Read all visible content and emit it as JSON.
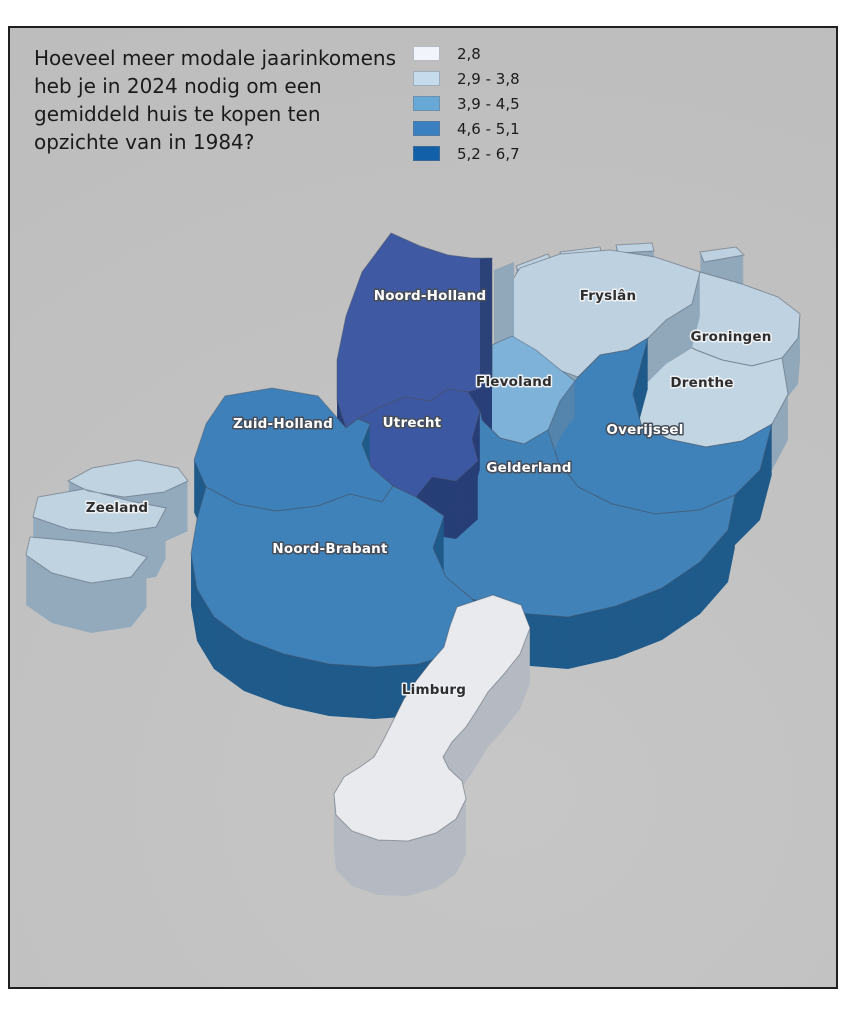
{
  "title": {
    "text": "Hoeveel meer modale jaarinkomens\nheb je in 2024 nodig om een\ngemiddeld huis te kopen ten\nopzichte van in 1984?"
  },
  "legend": {
    "items": [
      {
        "label": "2,8",
        "color": "#f1f4fa"
      },
      {
        "label": "2,9 - 3,8",
        "color": "#c6dbec"
      },
      {
        "label": "3,9 - 4,5",
        "color": "#67a8d6"
      },
      {
        "label": "4,6 - 5,1",
        "color": "#3a7fc0"
      },
      {
        "label": "5,2 - 6,7",
        "color": "#1160a8"
      }
    ]
  },
  "map": {
    "background_color": "#c1c1c1",
    "frame_border_color": "#1f1f1f",
    "provinces": [
      {
        "id": "groningen",
        "name": "Groningen",
        "value": "2,9 - 3,8",
        "top_color": "#bed2e1",
        "side_color": "#90a8ba",
        "label_style": "dark"
      },
      {
        "id": "drenthe",
        "name": "Drenthe",
        "value": "2,9 - 3,8",
        "top_color": "#c2d5e3",
        "side_color": "#90a8ba",
        "label_style": "dark"
      },
      {
        "id": "fryslan",
        "name": "Fryslân",
        "value": "2,9 - 3,8",
        "top_color": "#bdd1e0",
        "side_color": "#90a8ba",
        "label_style": "dark"
      },
      {
        "id": "overijssel",
        "name": "Overijssel",
        "value": "4,6 - 5,1",
        "top_color": "#3f81b9",
        "side_color": "#1f5a8a",
        "label_style": "light"
      },
      {
        "id": "flevoland",
        "name": "Flevoland",
        "value": "3,9 - 4,5",
        "top_color": "#7fb2d9",
        "side_color": "#5585ac",
        "label_style": "dark"
      },
      {
        "id": "noord-holland",
        "name": "Noord-Holland",
        "value": "5,2 - 6,7",
        "top_color": "#3f5aa3",
        "side_color": "#283f79",
        "label_style": "light"
      },
      {
        "id": "gelderland",
        "name": "Gelderland",
        "value": "4,6 - 5,1",
        "top_color": "#4182b8",
        "side_color": "#1f5a8a",
        "label_style": "light"
      },
      {
        "id": "utrecht",
        "name": "Utrecht",
        "value": "5,2 - 6,7",
        "top_color": "#3d58a2",
        "side_color": "#273e77",
        "label_style": "light"
      },
      {
        "id": "zuid-holland",
        "name": "Zuid-Holland",
        "value": "4,6 - 5,1",
        "top_color": "#3e80b9",
        "side_color": "#1f5a8a",
        "label_style": "light"
      },
      {
        "id": "zeeland",
        "name": "Zeeland",
        "value": "2,9 - 3,8",
        "top_color": "#bfd3e1",
        "side_color": "#93aabc",
        "label_style": "dark"
      },
      {
        "id": "noord-brabant",
        "name": "Noord-Brabant",
        "value": "4,6 - 5,1",
        "top_color": "#3f81b9",
        "side_color": "#1f5a8a",
        "label_style": "light"
      },
      {
        "id": "limburg",
        "name": "Limburg",
        "value": "2,8",
        "top_color": "#e8eaee",
        "side_color": "#b5bac2",
        "label_style": "dark"
      }
    ]
  }
}
